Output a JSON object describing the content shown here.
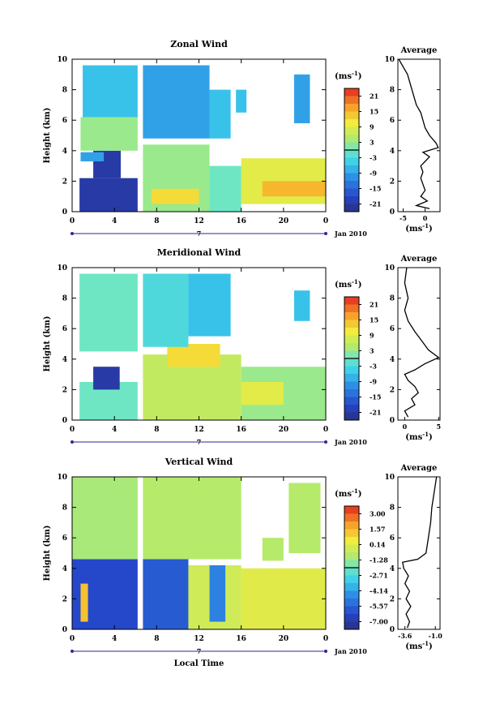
{
  "chart_data": [
    {
      "type": "heatmap",
      "title": "Zonal Wind",
      "ylabel": "Height (km)",
      "ylim": [
        0,
        10
      ],
      "yticks": [
        "0",
        "2",
        "4",
        "6",
        "8",
        "10"
      ],
      "xticks": [
        "0",
        "4",
        "8",
        "12",
        "16",
        "20",
        "0"
      ],
      "date_marker": "7",
      "date_label": "Jan 2010",
      "colorbar": {
        "unit": "(ms",
        "unit_exp": "-1",
        "ticks": [
          "21",
          "15",
          "9",
          "3",
          "-3",
          "-9",
          "-15",
          "-21"
        ],
        "range": [
          -24,
          24
        ]
      },
      "layers": [
        {
          "x": [
            0.7,
            6.2
          ],
          "y": [
            0,
            2.2
          ],
          "v": -21
        },
        {
          "x": [
            2.0,
            4.6
          ],
          "y": [
            2.2,
            4.0
          ],
          "v": -21
        },
        {
          "x": [
            0.8,
            3.0
          ],
          "y": [
            3.3,
            3.9
          ],
          "v": -9
        },
        {
          "x": [
            0.8,
            6.2
          ],
          "y": [
            4.0,
            6.2
          ],
          "v": 3
        },
        {
          "x": [
            1.0,
            6.2
          ],
          "y": [
            6.2,
            9.6
          ],
          "v": -6
        },
        {
          "x": [
            6.7,
            13.0
          ],
          "y": [
            0,
            4.4
          ],
          "v": 3
        },
        {
          "x": [
            7.5,
            12.0
          ],
          "y": [
            0.5,
            1.5
          ],
          "v": 12
        },
        {
          "x": [
            6.7,
            13.0
          ],
          "y": [
            4.8,
            9.6
          ],
          "v": -9
        },
        {
          "x": [
            13.0,
            16.0
          ],
          "y": [
            0,
            3.0
          ],
          "v": 0
        },
        {
          "x": [
            13.0,
            15.0
          ],
          "y": [
            4.8,
            8.0
          ],
          "v": -6
        },
        {
          "x": [
            16.0,
            24.0
          ],
          "y": [
            0.5,
            3.5
          ],
          "v": 9
        },
        {
          "x": [
            18.0,
            24.0
          ],
          "y": [
            1.0,
            2.0
          ],
          "v": 15
        },
        {
          "x": [
            15.5,
            16.5
          ],
          "y": [
            6.5,
            8.0
          ],
          "v": -6
        },
        {
          "x": [
            21.0,
            22.5
          ],
          "y": [
            5.8,
            9.0
          ],
          "v": -9
        }
      ],
      "profile": {
        "title": "Average",
        "xticks": [
          "-5",
          "0"
        ],
        "xrange": [
          -6.2,
          3.4
        ],
        "xticklocs": [
          -5,
          0
        ],
        "xlabel": "(ms",
        "xlabel_exp": "-1",
        "points": [
          [
            1.0,
            0.2
          ],
          [
            -2.0,
            0.4
          ],
          [
            0.5,
            0.7
          ],
          [
            -1.0,
            1.0
          ],
          [
            0.0,
            1.4
          ],
          [
            -0.5,
            1.8
          ],
          [
            -1.0,
            2.2
          ],
          [
            -0.5,
            2.6
          ],
          [
            -1.0,
            3.0
          ],
          [
            0.0,
            3.3
          ],
          [
            1.0,
            3.6
          ],
          [
            -0.5,
            3.9
          ],
          [
            3.0,
            4.2
          ],
          [
            2.5,
            4.5
          ],
          [
            1.0,
            5.0
          ],
          [
            0.0,
            5.5
          ],
          [
            -0.5,
            6.0
          ],
          [
            -1.0,
            6.5
          ],
          [
            -2.0,
            7.0
          ],
          [
            -3.0,
            8.0
          ],
          [
            -4.0,
            9.0
          ],
          [
            -5.0,
            9.5
          ],
          [
            -6.0,
            10.0
          ]
        ]
      }
    },
    {
      "type": "heatmap",
      "title": "Meridional Wind",
      "ylabel": "Height (km)",
      "ylim": [
        0,
        10
      ],
      "yticks": [
        "0",
        "2",
        "4",
        "6",
        "8",
        "10"
      ],
      "xticks": [
        "0",
        "4",
        "8",
        "12",
        "16",
        "20",
        "0"
      ],
      "date_marker": "7",
      "date_label": "Jan 2010",
      "colorbar": {
        "unit": "(ms",
        "unit_exp": "-1",
        "ticks": [
          "21",
          "15",
          "9",
          "3",
          "-3",
          "-9",
          "-15",
          "-21"
        ],
        "range": [
          -24,
          24
        ]
      },
      "layers": [
        {
          "x": [
            0.7,
            6.2
          ],
          "y": [
            0,
            2.5
          ],
          "v": 0
        },
        {
          "x": [
            0.7,
            6.2
          ],
          "y": [
            4.5,
            9.6
          ],
          "v": 0
        },
        {
          "x": [
            2.0,
            4.5
          ],
          "y": [
            2.0,
            3.5
          ],
          "v": -21
        },
        {
          "x": [
            6.7,
            16.0
          ],
          "y": [
            0,
            4.3
          ],
          "v": 6
        },
        {
          "x": [
            9.0,
            14.0
          ],
          "y": [
            3.5,
            5.0
          ],
          "v": 12
        },
        {
          "x": [
            6.7,
            11.0
          ],
          "y": [
            4.8,
            9.6
          ],
          "v": -3
        },
        {
          "x": [
            11.0,
            15.0
          ],
          "y": [
            5.5,
            9.6
          ],
          "v": -6
        },
        {
          "x": [
            16.0,
            24.0
          ],
          "y": [
            0,
            3.5
          ],
          "v": 3
        },
        {
          "x": [
            16.0,
            20.0
          ],
          "y": [
            1.0,
            2.5
          ],
          "v": 9
        },
        {
          "x": [
            21.0,
            22.5
          ],
          "y": [
            6.5,
            8.5
          ],
          "v": -6
        }
      ],
      "profile": {
        "title": "Average",
        "xticks": [
          "0",
          "5"
        ],
        "xrange": [
          -1.0,
          5.2
        ],
        "xticklocs": [
          0,
          5
        ],
        "xlabel": "(ms",
        "xlabel_exp": "-1",
        "points": [
          [
            0.5,
            0.2
          ],
          [
            0.0,
            0.6
          ],
          [
            1.5,
            1.0
          ],
          [
            1.0,
            1.4
          ],
          [
            2.0,
            1.8
          ],
          [
            1.5,
            2.2
          ],
          [
            0.5,
            2.6
          ],
          [
            0.0,
            3.0
          ],
          [
            1.5,
            3.3
          ],
          [
            3.0,
            3.7
          ],
          [
            5.0,
            4.1
          ],
          [
            3.5,
            4.6
          ],
          [
            2.5,
            5.2
          ],
          [
            1.5,
            5.8
          ],
          [
            0.5,
            6.5
          ],
          [
            0.0,
            7.2
          ],
          [
            0.5,
            8.0
          ],
          [
            0.0,
            9.0
          ],
          [
            0.3,
            10.0
          ]
        ]
      }
    },
    {
      "type": "heatmap",
      "title": "Vertical Wind",
      "ylabel": "Height (km)",
      "xlabel": "Local Time",
      "ylim": [
        0,
        10
      ],
      "yticks": [
        "0",
        "2",
        "4",
        "6",
        "8",
        "10"
      ],
      "xticks": [
        "0",
        "4",
        "8",
        "12",
        "16",
        "20",
        "0"
      ],
      "date_marker": "7",
      "date_label": "Jan 2010",
      "colorbar": {
        "unit": "(ms",
        "unit_exp": "-1",
        "ticks": [
          "3.00",
          "1.57",
          "0.14",
          "-1.28",
          "-2.71",
          "-4.14",
          "-5.57",
          "-7.00"
        ],
        "range": [
          -8,
          4
        ]
      },
      "layers": [
        {
          "x": [
            0.0,
            6.2
          ],
          "y": [
            0,
            4.6
          ],
          "v": -6.5
        },
        {
          "x": [
            0.0,
            6.2
          ],
          "y": [
            4.6,
            10.0
          ],
          "v": -1.0
        },
        {
          "x": [
            0.8,
            1.5
          ],
          "y": [
            0.5,
            3.0
          ],
          "v": 1.5
        },
        {
          "x": [
            6.7,
            11.0
          ],
          "y": [
            0,
            4.6
          ],
          "v": -6.0
        },
        {
          "x": [
            6.7,
            16.0
          ],
          "y": [
            4.6,
            10.0
          ],
          "v": -0.8
        },
        {
          "x": [
            11.0,
            16.0
          ],
          "y": [
            0,
            4.2
          ],
          "v": -0.2
        },
        {
          "x": [
            13.0,
            14.5
          ],
          "y": [
            0.5,
            4.2
          ],
          "v": -5.0
        },
        {
          "x": [
            16.0,
            24.0
          ],
          "y": [
            0,
            4.0
          ],
          "v": 0.2
        },
        {
          "x": [
            18.0,
            20.0
          ],
          "y": [
            4.5,
            6.0
          ],
          "v": -0.8
        },
        {
          "x": [
            20.5,
            23.5
          ],
          "y": [
            5.0,
            9.6
          ],
          "v": -0.8
        }
      ],
      "profile": {
        "title": "Average",
        "xticks": [
          "-3.6",
          "-1.0"
        ],
        "xrange": [
          -4.2,
          -0.6
        ],
        "xticklocs": [
          -3.6,
          -1.0
        ],
        "xlabel": "(ms",
        "xlabel_exp": "-1",
        "points": [
          [
            -3.4,
            0.1
          ],
          [
            -3.2,
            0.5
          ],
          [
            -3.5,
            1.0
          ],
          [
            -3.1,
            1.5
          ],
          [
            -3.5,
            2.0
          ],
          [
            -3.2,
            2.5
          ],
          [
            -3.6,
            3.0
          ],
          [
            -3.3,
            3.5
          ],
          [
            -3.7,
            4.0
          ],
          [
            -3.8,
            4.4
          ],
          [
            -2.5,
            4.6
          ],
          [
            -1.8,
            5.0
          ],
          [
            -1.6,
            6.0
          ],
          [
            -1.4,
            7.0
          ],
          [
            -1.3,
            8.0
          ],
          [
            -1.1,
            9.0
          ],
          [
            -0.9,
            10.0
          ]
        ]
      }
    }
  ]
}
